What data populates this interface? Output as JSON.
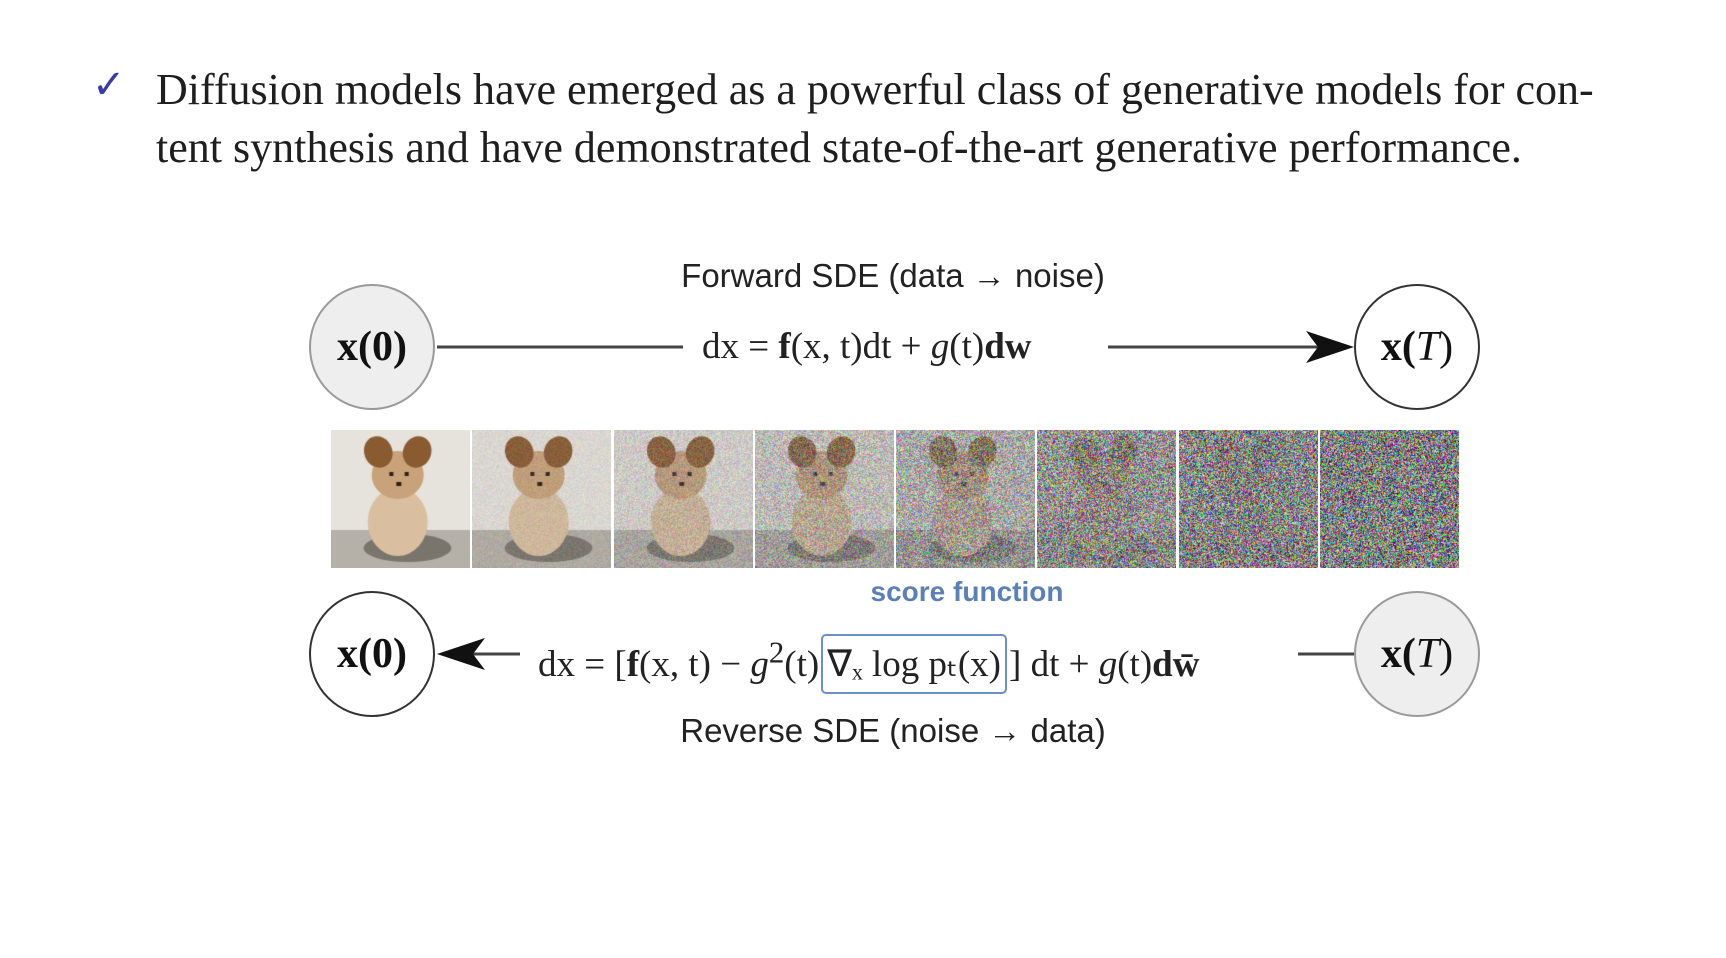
{
  "bullet": {
    "line1": "Diffusion models have emerged as a powerful class of generative models for con-",
    "line2": "tent synthesis and have demonstrated state-of-the-art generative performance."
  },
  "forward": {
    "caption": "Forward SDE (data → noise)",
    "equation": {
      "lhs": "dx",
      "eq": " = ",
      "f": "f",
      "args": "(x, t)",
      "dt": "dt + ",
      "g": "g",
      "gt": "(t)",
      "dw": "dw"
    }
  },
  "reverse": {
    "caption": "Reverse SDE (noise → data)",
    "score_label": "score function",
    "equation": {
      "lhs": "dx",
      "eq": " = [",
      "f": "f",
      "args": "(x, t) − ",
      "g2": "g",
      "sq": "2",
      "gt": "(t)",
      "score": "∇ₓ log pₜ(x)",
      "close": "] dt + ",
      "g": "g",
      "gt2": "(t)",
      "dw": "dw̄"
    }
  },
  "nodes": {
    "x0": "x(0)",
    "xT_x": "x(",
    "xT_T": "T",
    "xT_close": ")"
  },
  "strip": {
    "frames": 8,
    "noise_levels": [
      0.0,
      0.12,
      0.25,
      0.42,
      0.6,
      0.82,
      0.93,
      1.0
    ]
  }
}
